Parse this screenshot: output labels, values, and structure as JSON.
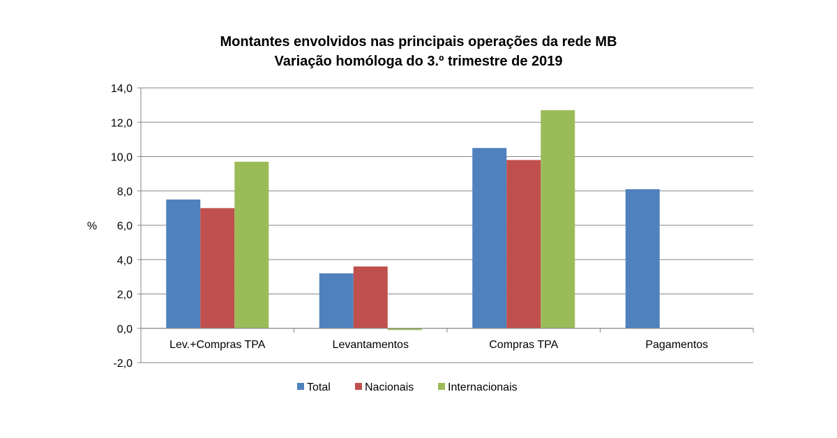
{
  "chart_data": {
    "type": "bar",
    "title": "Montantes envolvidos nas principais operações da rede MB",
    "subtitle": "Variação homóloga do 3.º trimestre de 2019",
    "ylabel": "%",
    "xlabel": "",
    "ylim": [
      -2,
      14
    ],
    "ytick_step": 2,
    "yticks": [
      "-2,0",
      "0,0",
      "2,0",
      "4,0",
      "6,0",
      "8,0",
      "10,0",
      "12,0",
      "14,0"
    ],
    "grid": true,
    "legend_position": "bottom",
    "categories": [
      "Lev.+Compras TPA",
      "Levantamentos",
      "Compras TPA",
      "Pagamentos"
    ],
    "series": [
      {
        "name": "Total",
        "color": "#4F81BD",
        "values": [
          7.5,
          3.2,
          10.5,
          8.1
        ]
      },
      {
        "name": "Nacionais",
        "color": "#C0504D",
        "values": [
          7.0,
          3.6,
          9.8,
          null
        ]
      },
      {
        "name": "Internacionais",
        "color": "#9BBB59",
        "values": [
          9.7,
          -0.1,
          12.7,
          null
        ]
      }
    ]
  }
}
